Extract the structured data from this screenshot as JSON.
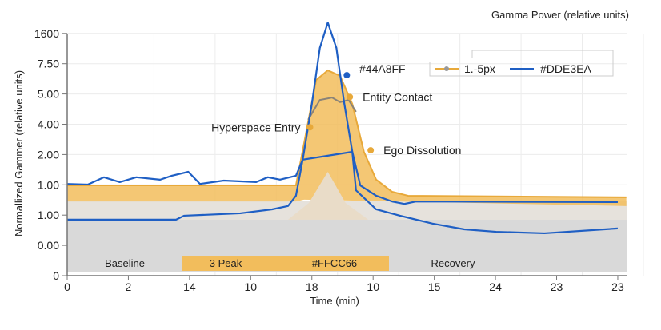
{
  "chart_data": {
    "type": "line",
    "title": "Gamma Power (relative units)",
    "xlabel": "Time (min)",
    "ylabel": "Normallized Gammer (relative units)",
    "x_tick_labels": [
      "0",
      "2",
      "14",
      "10",
      "18",
      "10",
      "15",
      "24",
      "23",
      "23"
    ],
    "y_tick_labels": [
      "0",
      "0.00",
      "1.00",
      "1.00",
      "2.00",
      "4.00",
      "5.00",
      "7.50",
      "1600"
    ],
    "xlim_positions": [
      0,
      9.14
    ],
    "ylim_positions": [
      0,
      8
    ],
    "grid": true,
    "legend": {
      "placement": "top-right",
      "entries": [
        "#44A8FF",
        "1.-5px",
        "#DDE3EA"
      ]
    },
    "colors": {
      "blue": "#1f5fc4",
      "orange": "#f2bd5c",
      "orange_dark": "#e8a93a",
      "gray": "#d9d9d9",
      "beige": "#e9dcc8",
      "gray_line": "#8a8378"
    },
    "series": [
      {
        "name": "#DDE3EA",
        "kind": "line",
        "color": "#1f5fc4",
        "points": [
          [
            0,
            3.03
          ],
          [
            0.34,
            3.01
          ],
          [
            0.6,
            3.25
          ],
          [
            0.86,
            3.09
          ],
          [
            1.13,
            3.25
          ],
          [
            1.52,
            3.17
          ],
          [
            1.71,
            3.3
          ],
          [
            1.98,
            3.43
          ],
          [
            2.17,
            3.03
          ],
          [
            2.56,
            3.14
          ],
          [
            3.09,
            3.09
          ],
          [
            3.28,
            3.25
          ],
          [
            3.48,
            3.17
          ],
          [
            3.74,
            3.3
          ],
          [
            3.85,
            3.83
          ],
          [
            4.0,
            5.67
          ],
          [
            4.13,
            7.52
          ],
          [
            4.26,
            8.36
          ],
          [
            4.4,
            7.52
          ],
          [
            4.53,
            5.67
          ],
          [
            4.66,
            4.09
          ],
          [
            4.79,
            2.98
          ],
          [
            5.05,
            2.64
          ],
          [
            5.31,
            2.45
          ],
          [
            5.51,
            2.37
          ],
          [
            5.7,
            2.45
          ],
          [
            9.0,
            2.43
          ]
        ]
      },
      {
        "name": "lower",
        "kind": "line",
        "color": "#1f5fc4",
        "points": [
          [
            0,
            1.85
          ],
          [
            1.78,
            1.85
          ],
          [
            1.91,
            1.98
          ],
          [
            2.83,
            2.06
          ],
          [
            3.35,
            2.19
          ],
          [
            3.61,
            2.3
          ],
          [
            3.74,
            2.64
          ],
          [
            3.85,
            3.83
          ],
          [
            4.66,
            4.09
          ],
          [
            4.72,
            2.82
          ],
          [
            5.05,
            2.19
          ],
          [
            5.44,
            1.98
          ],
          [
            5.97,
            1.72
          ],
          [
            6.49,
            1.53
          ],
          [
            7.01,
            1.45
          ],
          [
            7.8,
            1.4
          ],
          [
            9.0,
            1.56
          ]
        ]
      },
      {
        "name": "1.-5px",
        "kind": "band",
        "color": "#f2bd5c",
        "upper": [
          [
            0,
            2.98
          ],
          [
            3.74,
            2.98
          ],
          [
            3.87,
            4.35
          ],
          [
            4.07,
            6.46
          ],
          [
            4.26,
            6.78
          ],
          [
            4.46,
            6.6
          ],
          [
            4.66,
            5.67
          ],
          [
            4.85,
            4.09
          ],
          [
            5.05,
            3.17
          ],
          [
            5.31,
            2.77
          ],
          [
            5.57,
            2.64
          ],
          [
            9.14,
            2.59
          ]
        ],
        "lower": [
          [
            0,
            2.45
          ],
          [
            3.74,
            2.45
          ],
          [
            3.87,
            2.51
          ],
          [
            5.44,
            2.45
          ],
          [
            9.14,
            2.3
          ]
        ]
      },
      {
        "name": "hump",
        "kind": "area",
        "color": "#e9dcc8",
        "points": [
          [
            3.61,
            1.85
          ],
          [
            3.95,
            2.4
          ],
          [
            4.26,
            3.43
          ],
          [
            4.55,
            2.4
          ],
          [
            4.92,
            1.85
          ]
        ]
      },
      {
        "name": "#44A8FF",
        "kind": "line",
        "color": "#8a8378",
        "points": [
          [
            3.94,
            5.15
          ],
          [
            4.13,
            5.8
          ],
          [
            4.33,
            5.88
          ],
          [
            4.46,
            5.73
          ],
          [
            4.6,
            5.8
          ],
          [
            4.72,
            5.41
          ]
        ]
      }
    ],
    "annotations": [
      {
        "text": "Hyperspace Entry",
        "x": 3.97,
        "y": 4.9,
        "color": "#e8a93a",
        "side": "left"
      },
      {
        "text": "Entity Contact",
        "x": 4.62,
        "y": 5.9,
        "color": "#e8a93a",
        "side": "right"
      },
      {
        "text": "",
        "x": 4.57,
        "y": 6.62,
        "color": "#1f5fc4",
        "side": "none"
      },
      {
        "text": "Ego Dissolution",
        "x": 4.96,
        "y": 4.14,
        "color": "#e8a93a",
        "side": "right"
      }
    ],
    "phases": [
      {
        "label": "Baseline",
        "highlight": false
      },
      {
        "label": "3 Peak",
        "highlight": true
      },
      {
        "label": "#FFCC66",
        "highlight": true
      },
      {
        "label": "Recovery",
        "highlight": false
      }
    ]
  }
}
